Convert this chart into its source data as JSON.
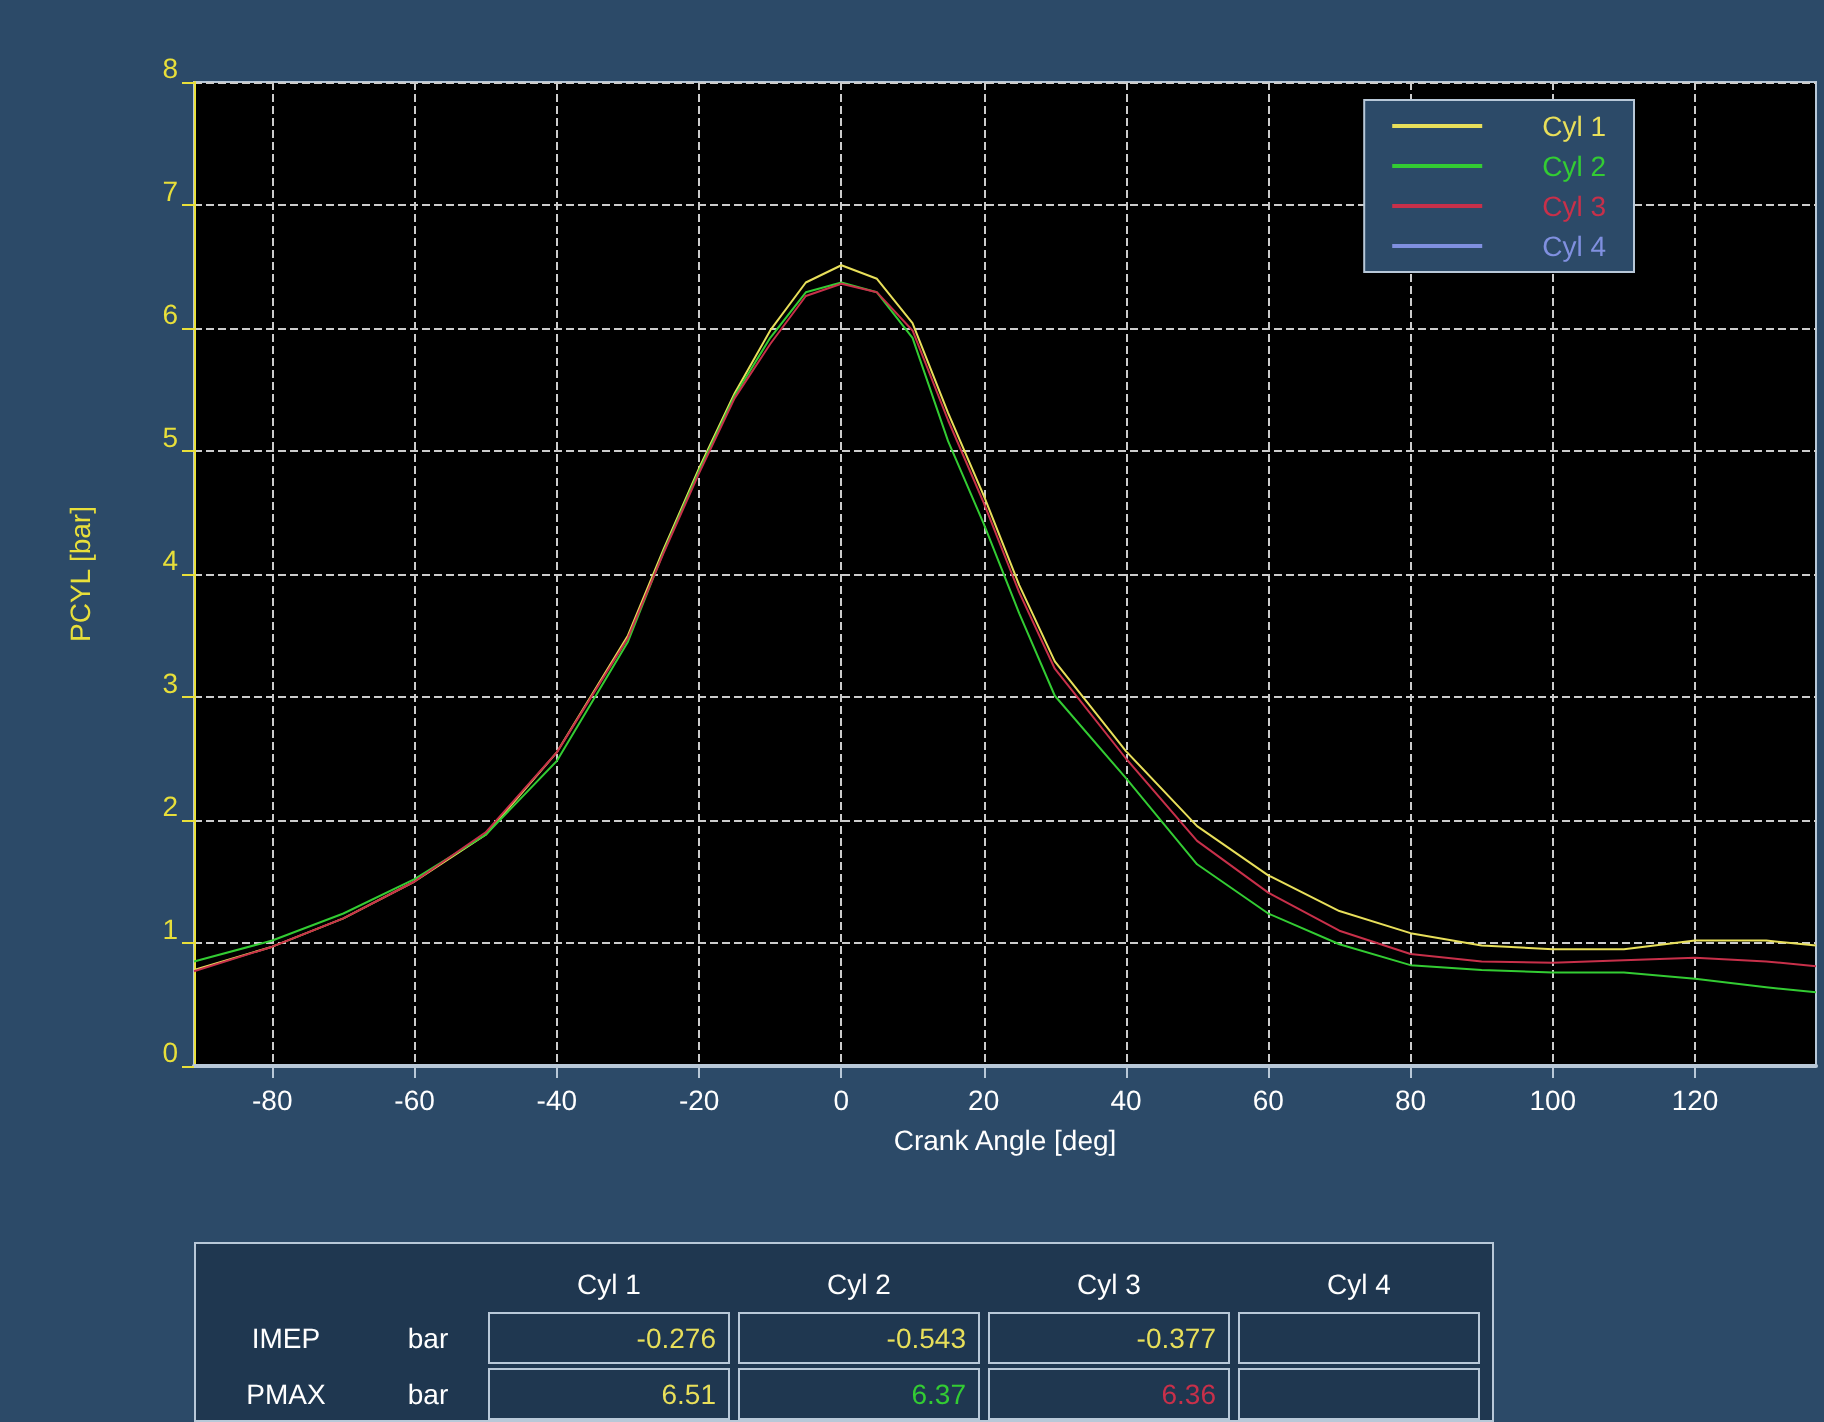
{
  "chart_data": {
    "type": "line",
    "xlabel": "Crank Angle [deg]",
    "ylabel": "PCYL [bar]",
    "x": [
      -91,
      -80,
      -70,
      -60,
      -50,
      -40,
      -30,
      -25,
      -20,
      -15,
      -10,
      -5,
      0,
      5,
      10,
      15,
      20,
      25,
      30,
      40,
      50,
      60,
      70,
      80,
      90,
      100,
      110,
      120,
      130,
      137
    ],
    "series": [
      {
        "name": "Cyl 1",
        "color": "#e8df5a",
        "values": [
          0.78,
          0.97,
          1.2,
          1.5,
          1.88,
          2.55,
          3.5,
          4.2,
          4.86,
          5.47,
          5.98,
          6.37,
          6.51,
          6.4,
          6.04,
          5.31,
          4.64,
          3.91,
          3.29,
          2.56,
          1.95,
          1.55,
          1.26,
          1.08,
          0.98,
          0.95,
          0.95,
          1.02,
          1.02,
          0.98
        ]
      },
      {
        "name": "Cyl 2",
        "color": "#33cc33",
        "values": [
          0.85,
          1.02,
          1.24,
          1.52,
          1.88,
          2.48,
          3.45,
          4.18,
          4.84,
          5.45,
          5.92,
          6.29,
          6.37,
          6.29,
          5.92,
          5.08,
          4.41,
          3.68,
          3.01,
          2.34,
          1.64,
          1.24,
          0.99,
          0.82,
          0.78,
          0.76,
          0.76,
          0.71,
          0.64,
          0.6
        ]
      },
      {
        "name": "Cyl 3",
        "color": "#c8304a",
        "values": [
          0.77,
          0.97,
          1.2,
          1.5,
          1.9,
          2.55,
          3.48,
          4.17,
          4.82,
          5.43,
          5.87,
          6.26,
          6.36,
          6.29,
          5.98,
          5.25,
          4.58,
          3.85,
          3.23,
          2.5,
          1.83,
          1.41,
          1.1,
          0.91,
          0.85,
          0.84,
          0.86,
          0.88,
          0.85,
          0.81
        ]
      },
      {
        "name": "Cyl 4",
        "color": "#8090e0",
        "values": [
          null,
          null,
          null,
          null,
          null,
          null,
          null,
          null,
          null,
          null,
          null,
          null,
          null,
          null,
          null,
          null,
          null,
          null,
          null,
          null,
          null,
          null,
          null,
          null,
          null,
          null,
          null,
          null,
          null,
          null
        ]
      }
    ],
    "xlim": [
      -91,
      137
    ],
    "xticks": [
      -80,
      -60,
      -40,
      -20,
      0,
      20,
      40,
      60,
      80,
      100,
      120
    ],
    "ylim": [
      0,
      8
    ],
    "yticks": [
      0,
      1,
      2,
      3,
      4,
      5,
      6,
      7,
      8
    ],
    "grid": true,
    "legend": "top right",
    "marker": "none",
    "line_style": "solid",
    "annotations": [
      "IMEP",
      "bar",
      "-0.276",
      "-0.543",
      "-0.377",
      "PMAX",
      "bar",
      "6.51",
      "6.37",
      "6.36"
    ]
  }
}
